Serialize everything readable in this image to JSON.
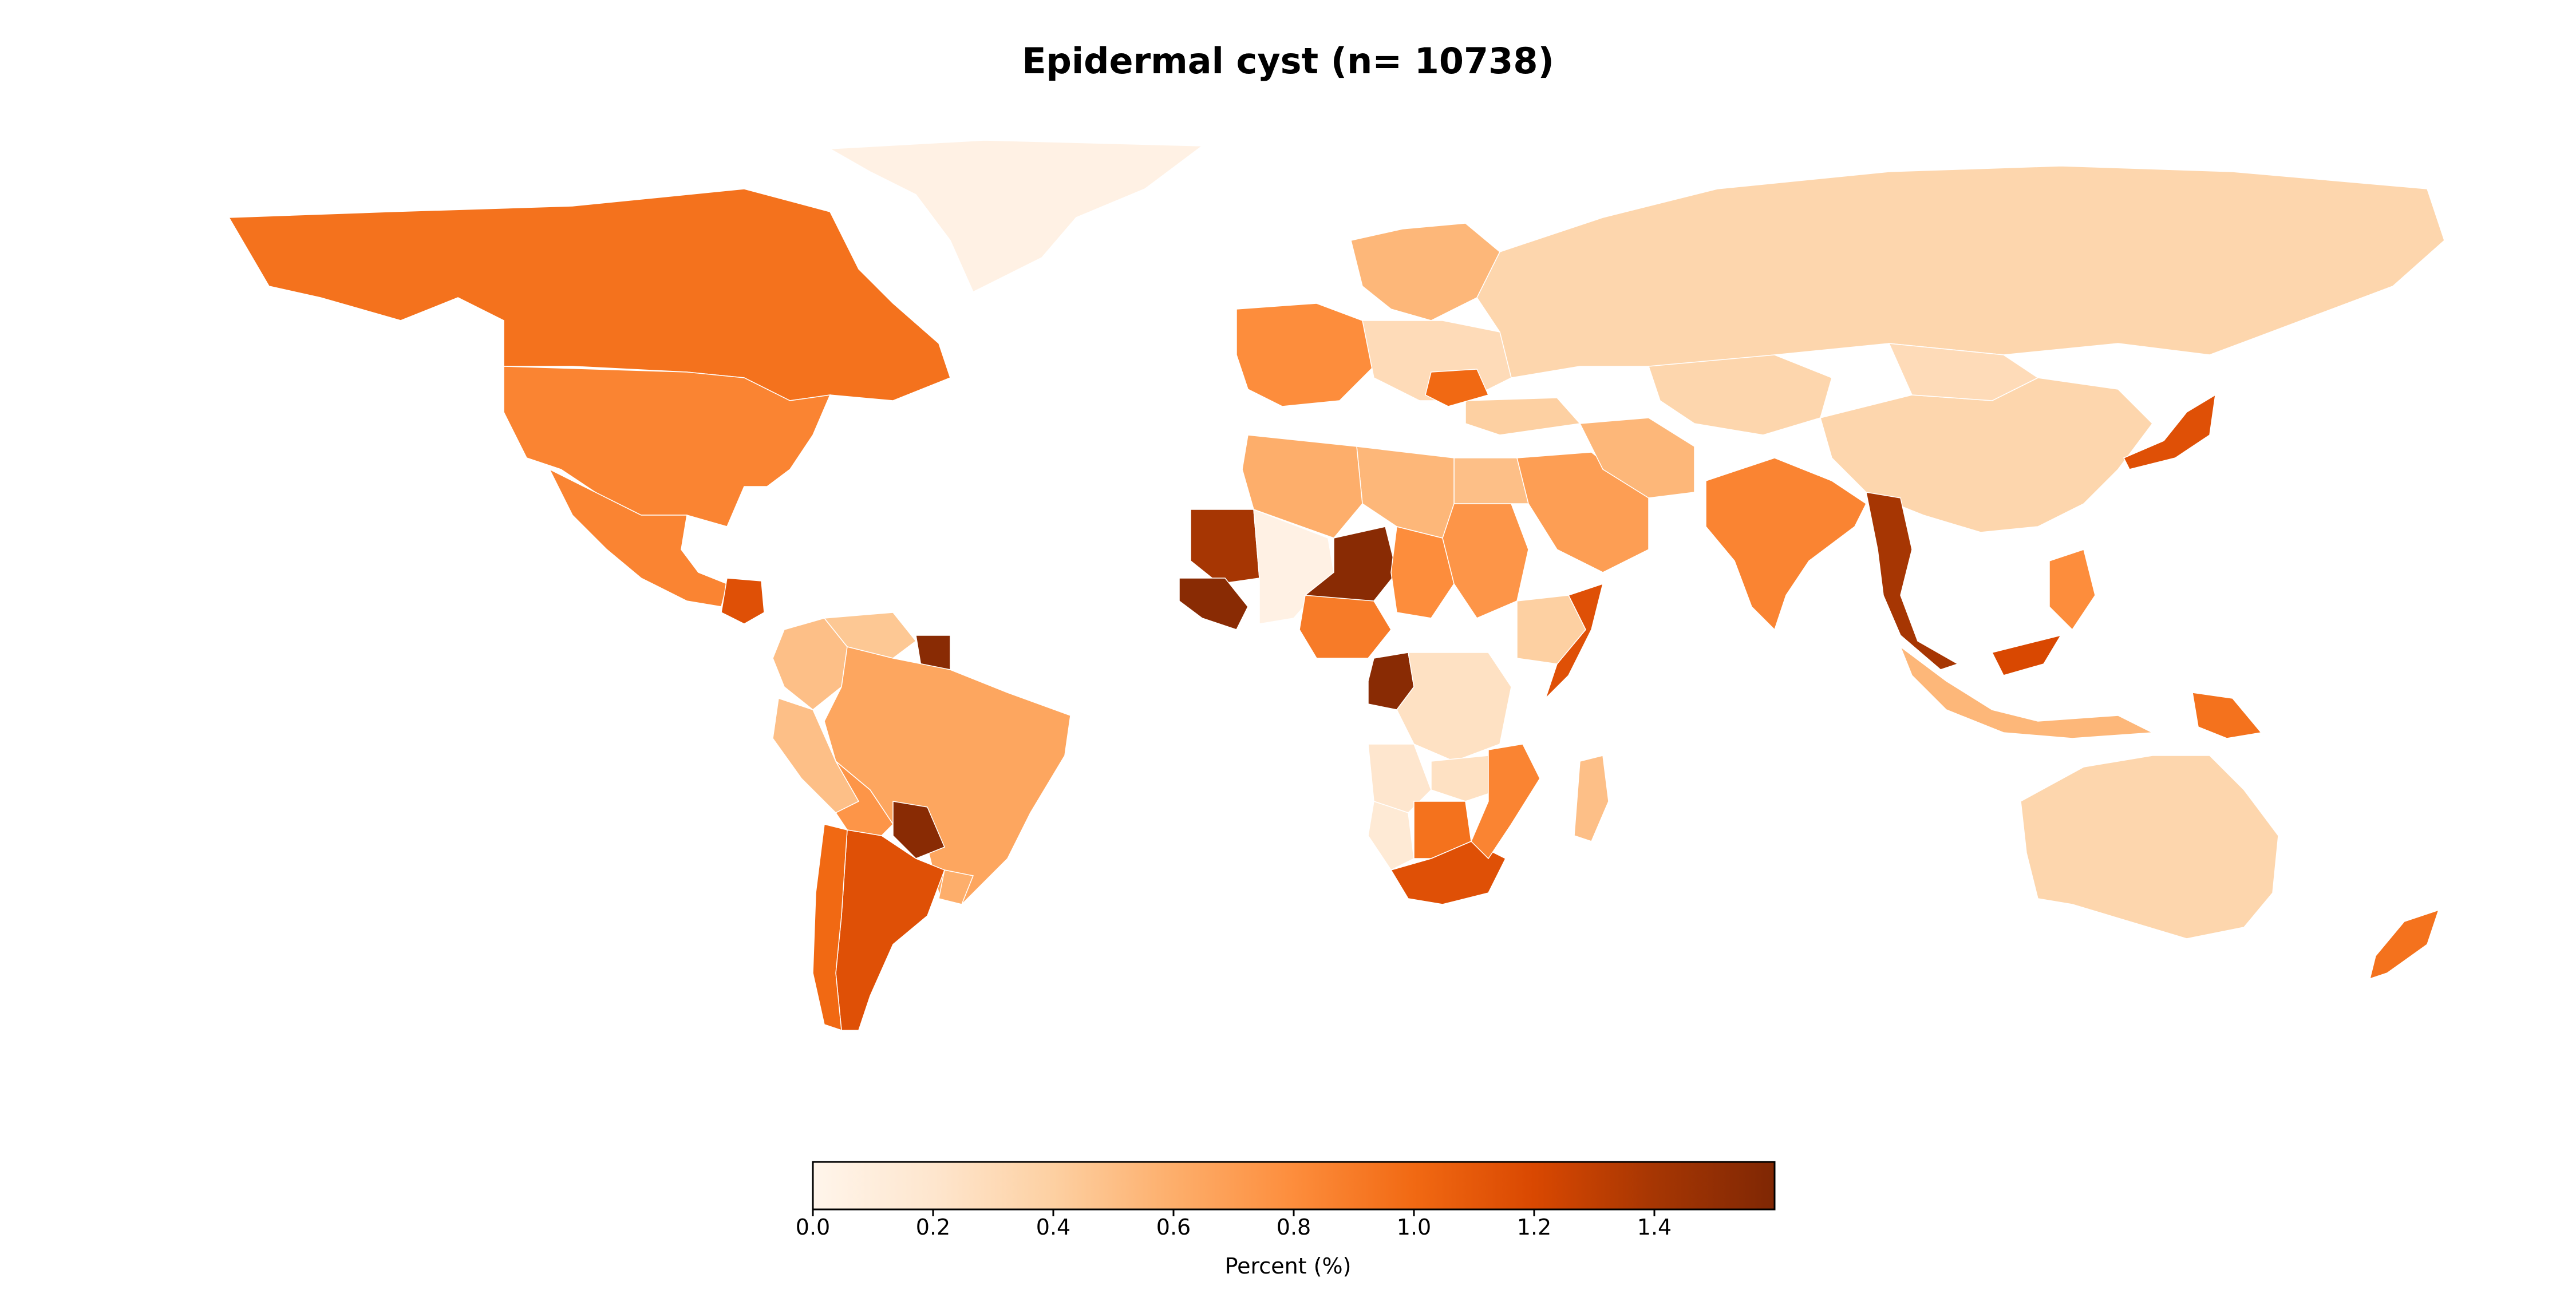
{
  "title": "Epidermal cyst (n= 10738)",
  "colorbar": {
    "label": "Percent (%)",
    "min": 0.0,
    "max": 1.6,
    "ticks": [
      "0.0",
      "0.2",
      "0.4",
      "0.6",
      "0.8",
      "1.0",
      "1.2",
      "1.4"
    ],
    "colormap": [
      "#fff5eb",
      "#fee6ce",
      "#fdd0a2",
      "#fdae6b",
      "#fd8d3c",
      "#f16913",
      "#d94801",
      "#a63603",
      "#7f2704"
    ],
    "colormap_name": "OrRd"
  },
  "chart_data": {
    "type": "choropleth",
    "title": "Epidermal cyst (n= 10738)",
    "value_label": "Percent (%)",
    "range": [
      0.0,
      1.6
    ],
    "regions": [
      {
        "region": "Greenland",
        "value": 0.05
      },
      {
        "region": "Canada",
        "value": 0.95
      },
      {
        "region": "United States",
        "value": 0.85
      },
      {
        "region": "Mexico",
        "value": 0.85
      },
      {
        "region": "Guatemala",
        "value": 1.15
      },
      {
        "region": "Colombia",
        "value": 0.5
      },
      {
        "region": "Venezuela",
        "value": 0.45
      },
      {
        "region": "Suriname",
        "value": 1.55
      },
      {
        "region": "Brazil",
        "value": 0.65
      },
      {
        "region": "Peru",
        "value": 0.5
      },
      {
        "region": "Bolivia",
        "value": 0.75
      },
      {
        "region": "Paraguay",
        "value": 1.55
      },
      {
        "region": "Argentina",
        "value": 1.15
      },
      {
        "region": "Chile",
        "value": 1.0
      },
      {
        "region": "Uruguay",
        "value": 0.6
      },
      {
        "region": "Mauritania",
        "value": 1.4
      },
      {
        "region": "Mali",
        "value": 0.05
      },
      {
        "region": "Niger",
        "value": 1.55
      },
      {
        "region": "Senegal",
        "value": 1.55
      },
      {
        "region": "Congo",
        "value": 1.55
      },
      {
        "region": "Nigeria",
        "value": 0.9
      },
      {
        "region": "Chad",
        "value": 0.8
      },
      {
        "region": "Sudan",
        "value": 0.75
      },
      {
        "region": "Egypt",
        "value": 0.5
      },
      {
        "region": "Libya",
        "value": 0.55
      },
      {
        "region": "Algeria",
        "value": 0.6
      },
      {
        "region": "Somalia",
        "value": 1.15
      },
      {
        "region": "Ethiopia",
        "value": 0.4
      },
      {
        "region": "DR Congo",
        "value": 0.25
      },
      {
        "region": "Angola",
        "value": 0.2
      },
      {
        "region": "Zambia",
        "value": 0.25
      },
      {
        "region": "Namibia",
        "value": 0.15
      },
      {
        "region": "Botswana",
        "value": 0.95
      },
      {
        "region": "South Africa",
        "value": 1.15
      },
      {
        "region": "Mozambique",
        "value": 0.85
      },
      {
        "region": "Madagascar",
        "value": 0.5
      },
      {
        "region": "Russia",
        "value": 0.35
      },
      {
        "region": "Kazakhstan",
        "value": 0.35
      },
      {
        "region": "China",
        "value": 0.35
      },
      {
        "region": "Mongolia",
        "value": 0.3
      },
      {
        "region": "India",
        "value": 0.85
      },
      {
        "region": "Saudi Arabia",
        "value": 0.7
      },
      {
        "region": "Iran",
        "value": 0.55
      },
      {
        "region": "Turkey",
        "value": 0.4
      },
      {
        "region": "Myanmar",
        "value": 1.4
      },
      {
        "region": "Japan",
        "value": 1.15
      },
      {
        "region": "Malaysia",
        "value": 1.2
      },
      {
        "region": "Indonesia",
        "value": 0.55
      },
      {
        "region": "Papua New Guinea",
        "value": 0.95
      },
      {
        "region": "Philippines",
        "value": 0.8
      },
      {
        "region": "Australia",
        "value": 0.35
      },
      {
        "region": "New Zealand",
        "value": 0.95
      },
      {
        "region": "Scandinavia",
        "value": 0.55
      },
      {
        "region": "Western Europe",
        "value": 0.8
      },
      {
        "region": "Eastern Europe",
        "value": 0.3
      },
      {
        "region": "Romania",
        "value": 1.0
      }
    ]
  }
}
